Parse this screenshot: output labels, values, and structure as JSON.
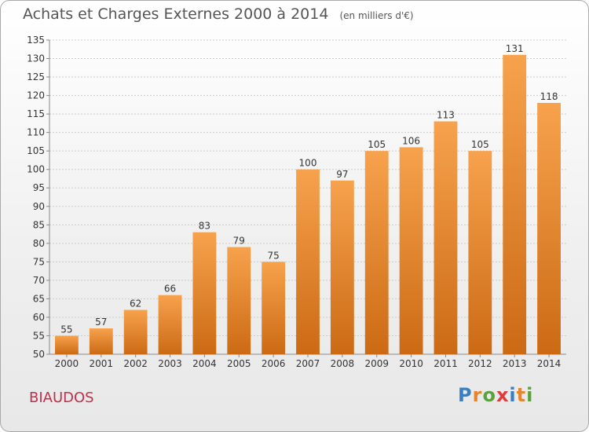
{
  "header": {
    "title": "Achats et Charges Externes 2000 à 2014",
    "subtitle": "(en milliers d'€)"
  },
  "commune": "BIAUDOS",
  "logo": {
    "text": "Proxiti",
    "letter_colors": [
      "#3a7fc1",
      "#e8842c",
      "#5aa33c",
      "#e03a3a",
      "#3a7fc1",
      "#e8842c",
      "#5aa33c"
    ]
  },
  "colors": {
    "bar_light": "#f7a24d",
    "bar_dark": "#cc6a14",
    "grid": "#cccccc",
    "axis": "#888888"
  },
  "chart_data": {
    "type": "bar",
    "title": "Achats et Charges Externes 2000 à 2014",
    "subtitle": "(en milliers d'€)",
    "categories": [
      "2000",
      "2001",
      "2002",
      "2003",
      "2004",
      "2005",
      "2006",
      "2007",
      "2008",
      "2009",
      "2010",
      "2011",
      "2012",
      "2013",
      "2014"
    ],
    "values": [
      55,
      57,
      62,
      66,
      83,
      79,
      75,
      100,
      97,
      105,
      106,
      113,
      105,
      131,
      118
    ],
    "ylim": [
      50,
      135
    ],
    "yticks": [
      50,
      55,
      60,
      65,
      70,
      75,
      80,
      85,
      90,
      95,
      100,
      105,
      110,
      115,
      120,
      125,
      130,
      135
    ],
    "grid": true,
    "xlabel": "",
    "ylabel": ""
  }
}
